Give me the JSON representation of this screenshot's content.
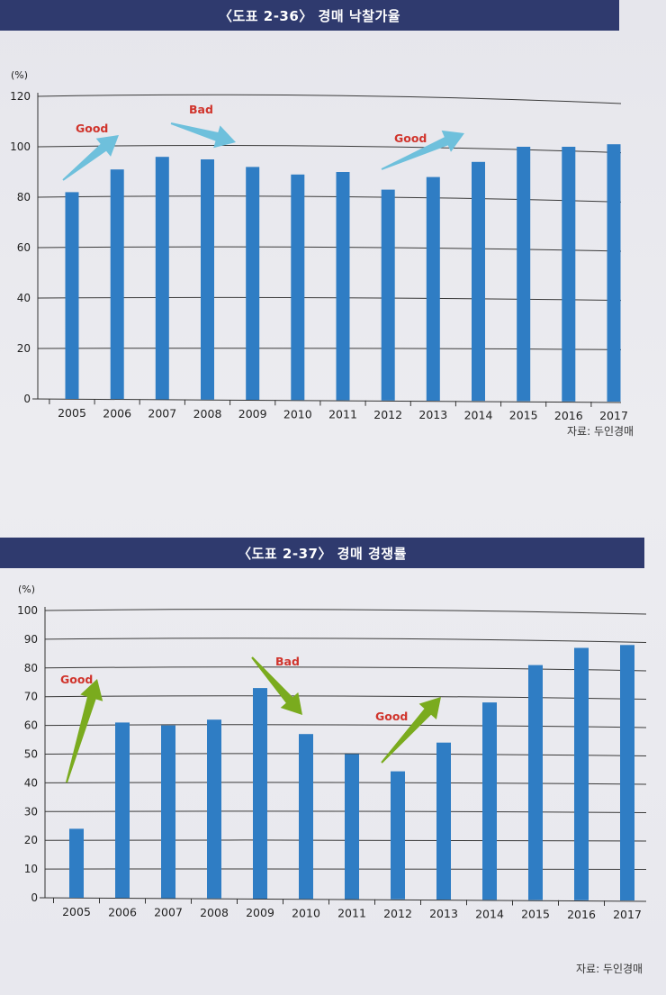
{
  "chart_data": [
    {
      "type": "bar",
      "title": "〈도표 2-36〉 경매 낙찰가율",
      "ylabel": "(%)",
      "categories": [
        "2005",
        "2006",
        "2007",
        "2008",
        "2009",
        "2010",
        "2011",
        "2012",
        "2013",
        "2014",
        "2015",
        "2016",
        "2017"
      ],
      "values": [
        82,
        91,
        96,
        95,
        92,
        89,
        90,
        83,
        88,
        94,
        100,
        100,
        101
      ],
      "ylim": [
        0,
        120
      ],
      "yticks": [
        0,
        20,
        40,
        60,
        80,
        100,
        120
      ],
      "grid": true,
      "bar_color": "#2f7dc4",
      "annotations": [
        {
          "label": "Good",
          "arrow_color": "#6ec0dc",
          "label_color": "#d0342c"
        },
        {
          "label": "Bad",
          "arrow_color": "#6ec0dc",
          "label_color": "#d0342c"
        },
        {
          "label": "Good",
          "arrow_color": "#6ec0dc",
          "label_color": "#d0342c"
        }
      ],
      "source": "자료: 두인경매"
    },
    {
      "type": "bar",
      "title": "〈도표 2-37〉 경매 경쟁률",
      "ylabel": "(%)",
      "categories": [
        "2005",
        "2006",
        "2007",
        "2008",
        "2009",
        "2010",
        "2011",
        "2012",
        "2013",
        "2014",
        "2015",
        "2016",
        "2017"
      ],
      "values": [
        24,
        61,
        60,
        62,
        73,
        57,
        50,
        44,
        54,
        68,
        81,
        87,
        88
      ],
      "ylim": [
        0,
        100
      ],
      "yticks": [
        0,
        10,
        20,
        30,
        40,
        50,
        60,
        70,
        80,
        90,
        100
      ],
      "grid": true,
      "bar_color": "#2f7dc4",
      "annotations": [
        {
          "label": "Good",
          "arrow_color": "#7aab1e",
          "label_color": "#d0342c"
        },
        {
          "label": "Bad",
          "arrow_color": "#7aab1e",
          "label_color": "#d0342c"
        },
        {
          "label": "Good",
          "arrow_color": "#7aab1e",
          "label_color": "#d0342c"
        }
      ],
      "source": "자료: 두인경매"
    }
  ]
}
